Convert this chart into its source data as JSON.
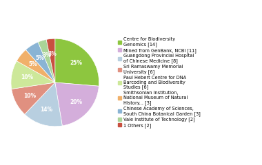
{
  "labels": [
    "Centre for Biodiversity\nGenomics [14]",
    "Mined from GenBank, NCBI [11]",
    "Guangdong Provincial Hospital\nof Chinese Medicine [8]",
    "Sri Ramaswamy Memorial\nUniversity [6]",
    "Paul Hebert Centre for DNA\nBarcoding and Biodiversity\nStudies [6]",
    "Smithsonian Institution,\nNational Museum of Natural\nHistory... [3]",
    "Chinese Academy of Sciences,\nSouth China Botanical Garden [3]",
    "Vale Institute of Technology [2]",
    "1 Others [2]"
  ],
  "values": [
    25,
    20,
    14,
    10,
    10,
    5,
    5,
    3,
    3
  ],
  "colors": [
    "#8dc63f",
    "#d4aedb",
    "#b8cfe0",
    "#e09080",
    "#cde89a",
    "#f0b06a",
    "#8ab4d4",
    "#aad498",
    "#c85040"
  ],
  "pct_labels": [
    "25%",
    "20%",
    "14%",
    "10%",
    "10%",
    "5%",
    "5%",
    "3%",
    "3%"
  ],
  "startangle": 90,
  "figsize": [
    3.8,
    2.4
  ],
  "dpi": 100
}
